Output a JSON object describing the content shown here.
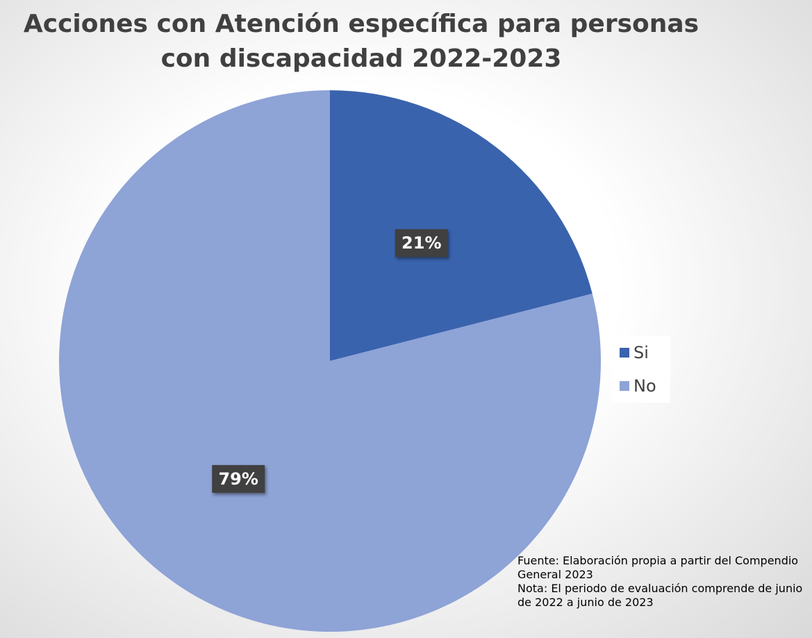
{
  "chart_data": {
    "type": "pie",
    "title": "Acciones con Atención específica para  personas con discapacidad 2022-2023",
    "categories": [
      "Si",
      "No"
    ],
    "values": [
      21,
      79
    ],
    "value_labels": [
      "21%",
      "79%"
    ],
    "colors": [
      "#3a63ad",
      "#8ea3d6"
    ],
    "legend": "right",
    "annotations": [
      "Fuente: Elaboración propia a partir del Compendio General 2023",
      "Nota: El periodo de evaluación comprende de junio de 2022 a junio de 2023"
    ]
  }
}
